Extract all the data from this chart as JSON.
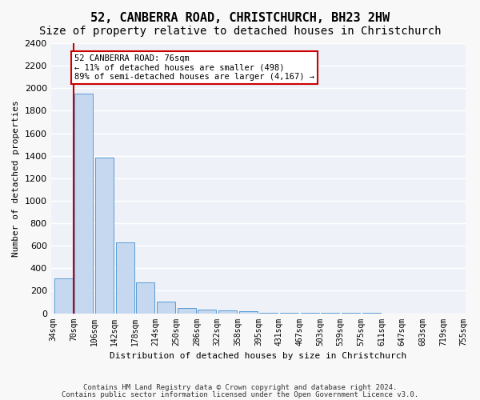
{
  "title": "52, CANBERRA ROAD, CHRISTCHURCH, BH23 2HW",
  "subtitle": "Size of property relative to detached houses in Christchurch",
  "xlabel": "Distribution of detached houses by size in Christchurch",
  "ylabel": "Number of detached properties",
  "bar_color": "#c5d8f0",
  "bar_edge_color": "#5b9bd5",
  "bar_values": [
    310,
    1950,
    1380,
    630,
    275,
    100,
    50,
    35,
    25,
    20,
    5,
    3,
    2,
    1,
    1,
    1,
    0,
    0,
    0,
    0
  ],
  "bin_labels": [
    "34sqm",
    "70sqm",
    "106sqm",
    "142sqm",
    "178sqm",
    "214sqm",
    "250sqm",
    "286sqm",
    "322sqm",
    "358sqm",
    "395sqm",
    "431sqm",
    "467sqm",
    "503sqm",
    "539sqm",
    "575sqm",
    "611sqm",
    "647sqm",
    "683sqm",
    "719sqm",
    "755sqm"
  ],
  "ylim": [
    0,
    2400
  ],
  "yticks": [
    0,
    200,
    400,
    600,
    800,
    1000,
    1200,
    1400,
    1600,
    1800,
    2000,
    2200,
    2400
  ],
  "property_line_x": 0.5,
  "annotation_text": "52 CANBERRA ROAD: 76sqm\n← 11% of detached houses are smaller (498)\n89% of semi-detached houses are larger (4,167) →",
  "annotation_box_color": "#ffffff",
  "annotation_box_edge_color": "#cc0000",
  "vline_color": "#cc0000",
  "footer_line1": "Contains HM Land Registry data © Crown copyright and database right 2024.",
  "footer_line2": "Contains public sector information licensed under the Open Government Licence v3.0.",
  "bg_color": "#eef2f8",
  "grid_color": "#ffffff",
  "title_fontsize": 11,
  "subtitle_fontsize": 10
}
